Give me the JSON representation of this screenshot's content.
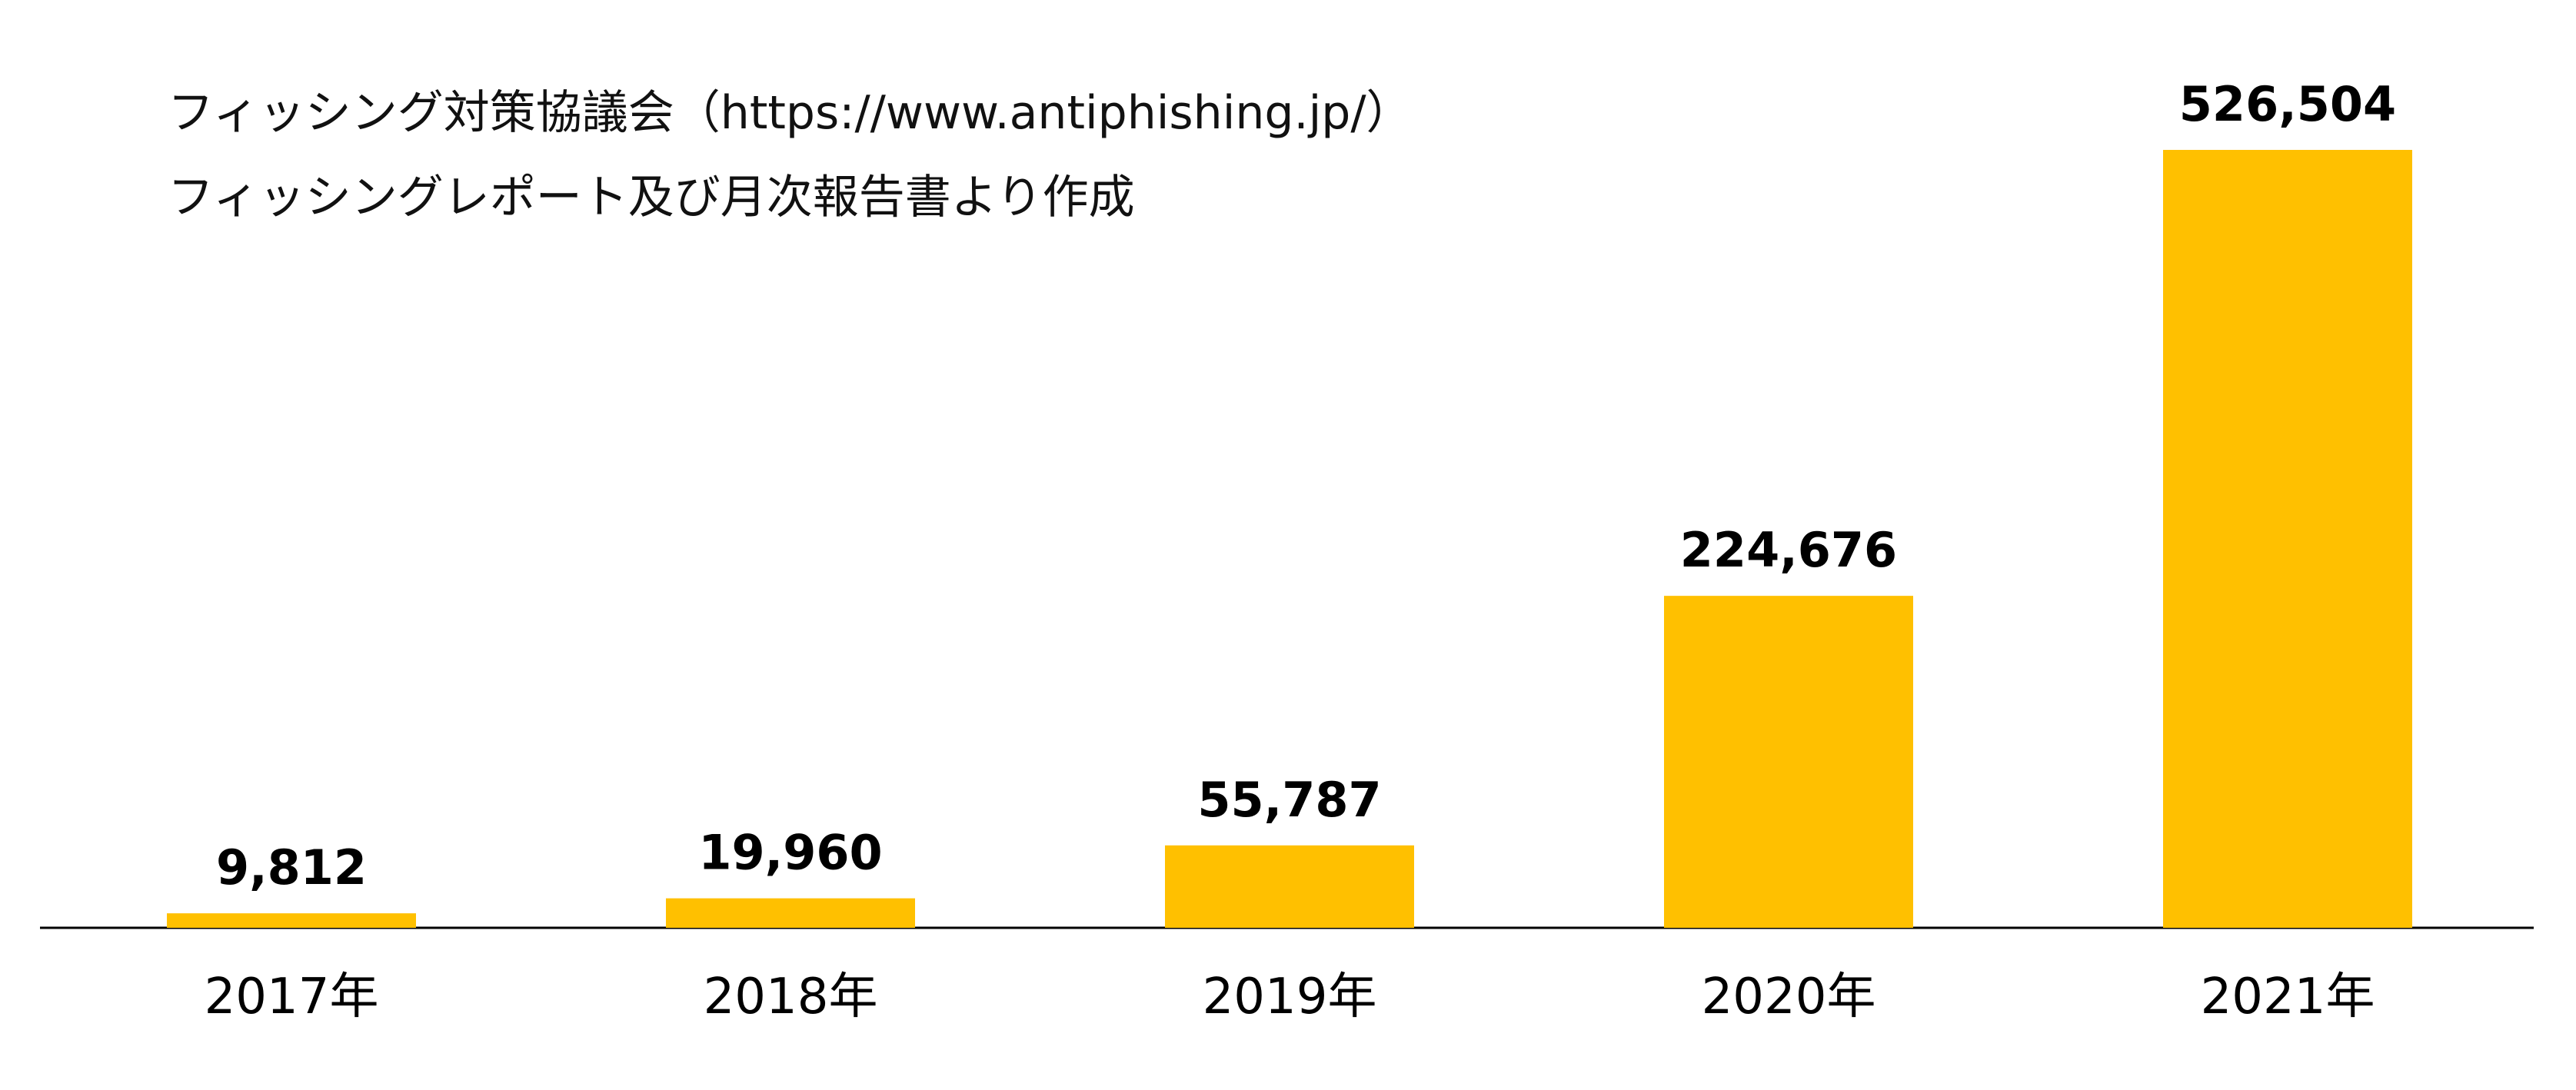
{
  "source": {
    "line1": "フィッシング対策協議会（https://www.antiphishing.jp/）",
    "line2": "フィッシングレポート及び月次報告書より作成"
  },
  "chart_data": {
    "type": "bar",
    "title": "",
    "xlabel": "",
    "ylabel": "",
    "categories": [
      "2017年",
      "2018年",
      "2019年",
      "2020年",
      "2021年"
    ],
    "values": [
      9812,
      19960,
      55787,
      224676,
      526504
    ],
    "value_labels": [
      "9,812",
      "19,960",
      "55,787",
      "224,676",
      "526,504"
    ],
    "ylim": [
      0,
      526504
    ],
    "grid": false,
    "legend": "none",
    "bar_color": "#FFC000",
    "axis_color": "#000000",
    "label_color": "#000000"
  }
}
